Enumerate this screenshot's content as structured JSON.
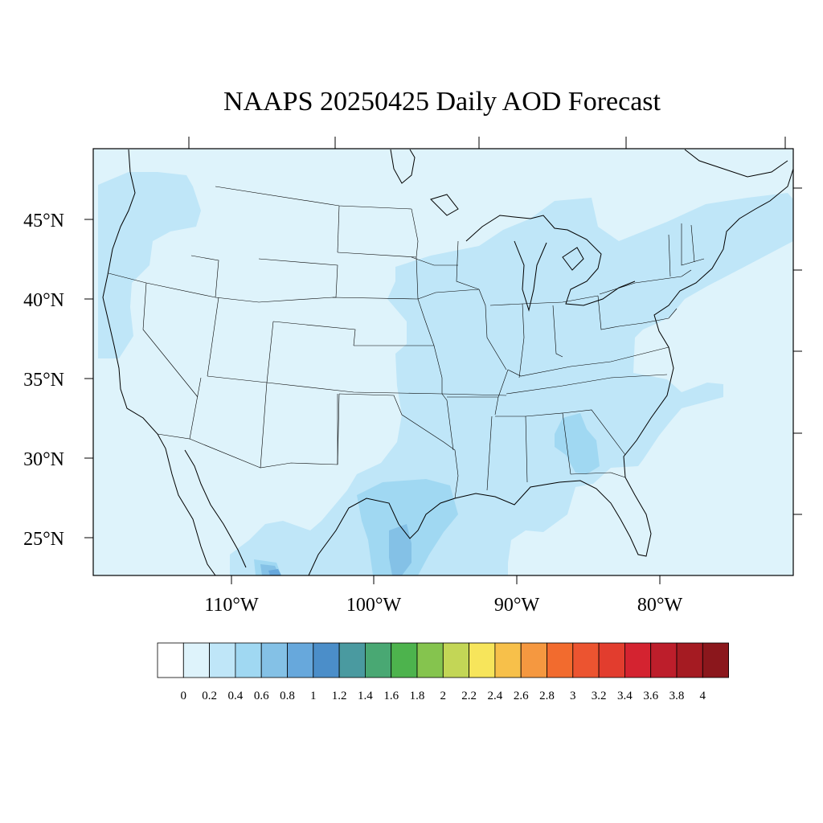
{
  "title": "NAAPS 20250425 Daily AOD Forecast",
  "lat_labels": [
    "45°N",
    "40°N",
    "35°N",
    "30°N",
    "25°N"
  ],
  "lon_labels": [
    "110°W",
    "100°W",
    "90°W",
    "80°W"
  ],
  "colorbar": {
    "labels": [
      "0",
      "0.2",
      "0.4",
      "0.6",
      "0.8",
      "1",
      "1.2",
      "1.4",
      "1.6",
      "1.8",
      "2",
      "2.2",
      "2.4",
      "2.6",
      "2.8",
      "3",
      "3.2",
      "3.4",
      "3.6",
      "3.8",
      "4"
    ],
    "colors": [
      "#ffffff",
      "#def3fb",
      "#bfe6f8",
      "#a0d8f2",
      "#84c1e6",
      "#67a8dc",
      "#4b8ec9",
      "#4a9aa0",
      "#49a873",
      "#4db34d",
      "#85c44e",
      "#c3d656",
      "#f7e55b",
      "#f7c04a",
      "#f59840",
      "#f26b2e",
      "#ec5430",
      "#e23d2e",
      "#d42330",
      "#bd1e2b",
      "#a51b22",
      "#8b171c"
    ]
  },
  "map_colors": {
    "background": "#def3fb",
    "level_04": "#bfe6f8",
    "level_06": "#a0d8f2",
    "level_08": "#84c1e6",
    "level_10": "#67a8dc",
    "lines": "#000000"
  }
}
